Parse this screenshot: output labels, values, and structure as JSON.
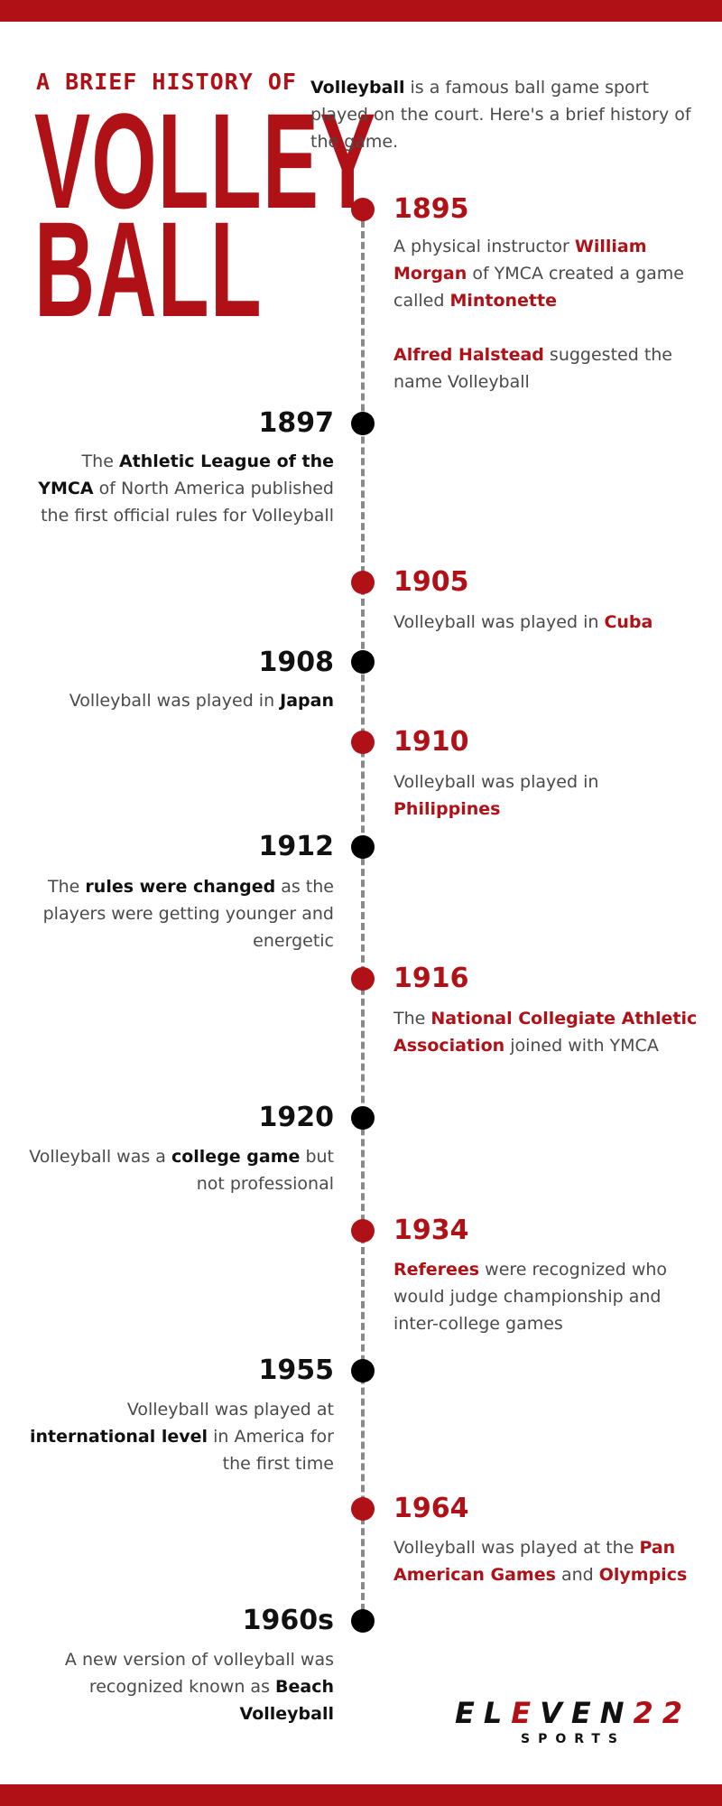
{
  "header": {
    "kicker": "A BRIEF HISTORY OF",
    "title_line1": "VOLLEY",
    "title_line2": "BALL"
  },
  "intro": {
    "bold": "Volleyball",
    "rest": " is a famous ball game sport played on the court. Here's a brief history of the game."
  },
  "colors": {
    "accent": "#b01117",
    "text": "#4a4a4a",
    "dark": "#111111",
    "axis": "#8a8a8a"
  },
  "timeline": [
    {
      "year": "1895",
      "side": "right",
      "p1": [
        "A physical instructor ",
        "William Morgan",
        " of YMCA created a game called ",
        "Mintonette"
      ],
      "p2": [
        "Alfred Halstead",
        " suggested the name Volleyball"
      ]
    },
    {
      "year": "1897",
      "side": "left",
      "p1": [
        "The ",
        "Athletic League of the YMCA",
        " of North America published the first official rules for Volleyball"
      ]
    },
    {
      "year": "1905",
      "side": "right",
      "p1": [
        "Volleyball was played in ",
        "Cuba"
      ]
    },
    {
      "year": "1908",
      "side": "left",
      "p1": [
        "Volleyball was played in ",
        "Japan"
      ]
    },
    {
      "year": "1910",
      "side": "right",
      "p1": [
        "Volleyball was played in ",
        "Philippines"
      ]
    },
    {
      "year": "1912",
      "side": "left",
      "p1": [
        "The ",
        "rules were changed",
        " as the players were getting younger and energetic"
      ]
    },
    {
      "year": "1916",
      "side": "right",
      "p1": [
        "The ",
        "National Collegiate Athletic Association",
        " joined with YMCA"
      ]
    },
    {
      "year": "1920",
      "side": "left",
      "p1": [
        "Volleyball was a ",
        "college game",
        " but not professional"
      ]
    },
    {
      "year": "1934",
      "side": "right",
      "p1": [
        "Referees",
        " were recognized who would judge championship and inter-college games"
      ]
    },
    {
      "year": "1955",
      "side": "left",
      "p1": [
        "Volleyball was played at ",
        "international level",
        " in America for the first time"
      ]
    },
    {
      "year": "1964",
      "side": "right",
      "p1": [
        "Volleyball was played at the ",
        "Pan American Games",
        " and ",
        "Olympics"
      ]
    },
    {
      "year": "1960s",
      "side": "left",
      "p1": [
        "A new version of volleyball was recognized known as ",
        "Beach Volleyball"
      ]
    }
  ],
  "logo": {
    "part1": "EL",
    "part2": "E",
    "part3": "VEN",
    "part4": "22",
    "sub": "SPORTS"
  }
}
